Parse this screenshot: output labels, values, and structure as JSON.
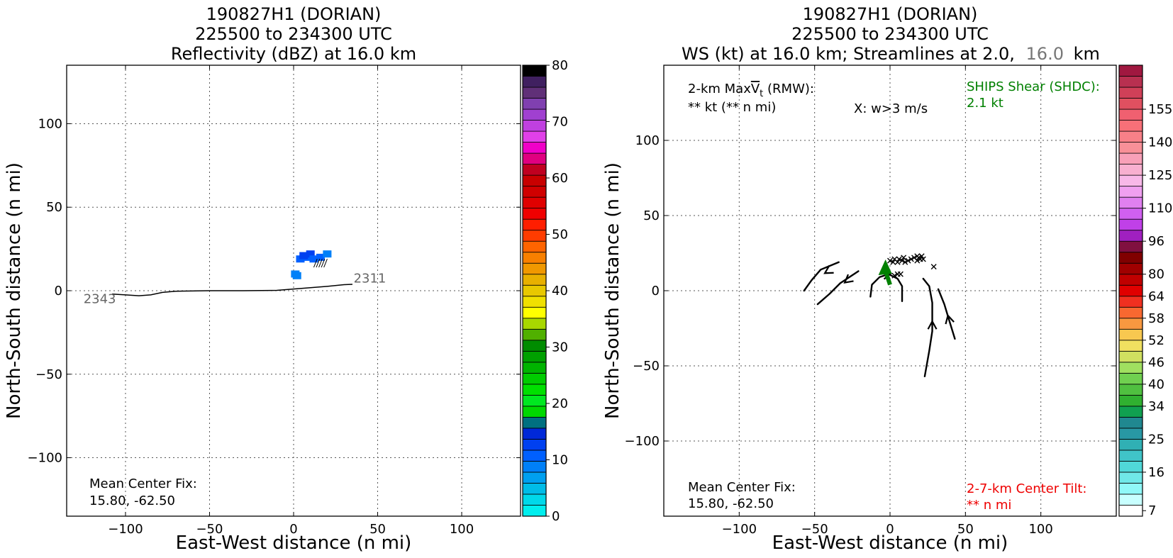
{
  "chart_data": [
    {
      "type": "heatmap",
      "title": [
        "190827H1 (DORIAN)",
        "225500 to 234300 UTC",
        "Reflectivity (dBZ) at 16.0 km"
      ],
      "xlabel": "East-West distance (n mi)",
      "ylabel": "North-South distance (n mi)",
      "xlim": [
        -135,
        135
      ],
      "ylim": [
        -135,
        135
      ],
      "xticks": [
        -100,
        -50,
        0,
        50,
        100
      ],
      "xtick_labels": [
        "−100",
        "−50",
        "0",
        "50",
        "100"
      ],
      "yticks": [
        -100,
        -50,
        0,
        50,
        100
      ],
      "ytick_labels": [
        "−100",
        "−50",
        "0",
        "50",
        "100"
      ],
      "grid": true,
      "colorbar": {
        "min": 0,
        "max": 80,
        "ticks": [
          0,
          10,
          20,
          30,
          40,
          50,
          60,
          70,
          80
        ],
        "colors": [
          "#00eeee",
          "#00d8ea",
          "#00bce8",
          "#00a0f0",
          "#0080f8",
          "#0060ff",
          "#0040f0",
          "#0028d8",
          "#007080",
          "#00d800",
          "#00e820",
          "#00e000",
          "#00cc00",
          "#00b400",
          "#00a000",
          "#008c00",
          "#50b000",
          "#a8d800",
          "#ffff00",
          "#f0e000",
          "#e8c800",
          "#e8b000",
          "#f09800",
          "#f88000",
          "#ff6400",
          "#ff3c00",
          "#ff1e00",
          "#f00000",
          "#e00000",
          "#d00000",
          "#c80000",
          "#c00020",
          "#e00080",
          "#f000c8",
          "#e040e8",
          "#c040e0",
          "#a040d0",
          "#8040b0",
          "#603078",
          "#402060",
          "#000000"
        ]
      },
      "annotations": {
        "center_fix_label": "Mean Center Fix:",
        "center_fix_value": "15.80, -62.50",
        "track_start_label": "2311",
        "track_end_label": "2343"
      },
      "flight_track": [
        [
          -108,
          -2
        ],
        [
          -100,
          -2.5
        ],
        [
          -92,
          -3
        ],
        [
          -85,
          -2.5
        ],
        [
          -78,
          -1
        ],
        [
          -70,
          -0.3
        ],
        [
          -50,
          0
        ],
        [
          -30,
          0
        ],
        [
          -10,
          0.2
        ],
        [
          0,
          1
        ],
        [
          10,
          1.8
        ],
        [
          20,
          2.6
        ],
        [
          30,
          3.6
        ],
        [
          35,
          3.8
        ]
      ],
      "reflectivity_cells": [
        {
          "x": 8,
          "y": 20,
          "dbz": 11
        },
        {
          "x": 10,
          "y": 22,
          "dbz": 12
        },
        {
          "x": 4,
          "y": 19,
          "dbz": 11
        },
        {
          "x": 6,
          "y": 21,
          "dbz": 12
        },
        {
          "x": 12,
          "y": 19,
          "dbz": 11
        },
        {
          "x": 16,
          "y": 20,
          "dbz": 10
        },
        {
          "x": 20,
          "y": 22,
          "dbz": 8
        },
        {
          "x": 1,
          "y": 10,
          "dbz": 9
        },
        {
          "x": 2,
          "y": 9,
          "dbz": 8
        }
      ]
    },
    {
      "type": "heatmap",
      "title": [
        "190827H1 (DORIAN)",
        "225500 to 234300 UTC",
        "WS (kt) at 16.0 km; Streamlines at 2.0,",
        "16.0",
        "km"
      ],
      "xlabel": "East-West distance (n mi)",
      "ylabel": "North-South distance (n mi)",
      "xlim": [
        -150,
        150
      ],
      "ylim": [
        -150,
        150
      ],
      "xticks": [
        -100,
        -50,
        0,
        50,
        100
      ],
      "xtick_labels": [
        "−100",
        "−50",
        "0",
        "50",
        "100"
      ],
      "yticks": [
        -100,
        -50,
        0,
        50,
        100
      ],
      "ytick_labels": [
        "−100",
        "−50",
        "0",
        "50",
        "100"
      ],
      "grid": true,
      "colorbar": {
        "ticks": [
          7,
          16,
          25,
          34,
          40,
          46,
          52,
          58,
          64,
          80,
          96,
          110,
          125,
          140,
          155
        ],
        "tick_labels": [
          "7",
          "16",
          "25",
          "34",
          "40",
          "46",
          "52",
          "58",
          "64",
          "80",
          "96",
          "110",
          "125",
          "140",
          "155"
        ],
        "colors": [
          "#ffffff",
          "#c8ffff",
          "#90f8f8",
          "#70e8e8",
          "#50d8d8",
          "#40c4c8",
          "#30b0b4",
          "#2898a4",
          "#208890",
          "#10a050",
          "#30b030",
          "#50c040",
          "#70d050",
          "#a0e060",
          "#d0e060",
          "#f0e060",
          "#f8c850",
          "#f89840",
          "#f86830",
          "#f03020",
          "#e00000",
          "#c00000",
          "#a00000",
          "#800000",
          "#801040",
          "#a020c0",
          "#c040e8",
          "#d060f0",
          "#e080f0",
          "#f0a0f0",
          "#f8b8e8",
          "#f8b0d0",
          "#f8a0b8",
          "#f89098",
          "#f88088",
          "#f87078",
          "#f06070",
          "#e05060",
          "#d04058",
          "#b83050",
          "#a01840"
        ]
      },
      "annotations": {
        "maxvt_label_prefix": "2-km Max",
        "maxvt_label_suffix": " (RMW):",
        "maxvt_value": "** kt (** n mi)",
        "w_legend": "X: w>3 m/s",
        "shear_label": "SHIPS Shear (SHDC):",
        "shear_value": "2.1 kt",
        "center_fix_label": "Mean Center Fix:",
        "center_fix_value": "15.80, -62.50",
        "tilt_label": "2-7-km Center Tilt:",
        "tilt_value": "** n mi"
      },
      "shear_vector": {
        "from": [
          0,
          4
        ],
        "to": [
          -3,
          17
        ],
        "color": "#008000"
      },
      "w_markers": [
        [
          0,
          20
        ],
        [
          2,
          19
        ],
        [
          3,
          21
        ],
        [
          5,
          19
        ],
        [
          6,
          21
        ],
        [
          8,
          20
        ],
        [
          9,
          22
        ],
        [
          10,
          19
        ],
        [
          12,
          20
        ],
        [
          14,
          21
        ],
        [
          16,
          22
        ],
        [
          18,
          20
        ],
        [
          18,
          23
        ],
        [
          19,
          22
        ],
        [
          20,
          21
        ],
        [
          21,
          23
        ],
        [
          22,
          21
        ],
        [
          29,
          16
        ],
        [
          3,
          10
        ],
        [
          5,
          11
        ],
        [
          7,
          11
        ]
      ],
      "streamlines": [
        [
          [
            -57,
            0
          ],
          [
            -52,
            7
          ],
          [
            -46,
            14
          ],
          [
            -34,
            19
          ]
        ],
        [
          [
            -48,
            -9
          ],
          [
            -40,
            -2
          ],
          [
            -33,
            5
          ],
          [
            -21,
            13
          ]
        ],
        [
          [
            -13,
            -4
          ],
          [
            -12,
            4
          ],
          [
            -7,
            9
          ],
          [
            -1,
            11
          ],
          [
            5,
            8
          ],
          [
            8,
            3
          ],
          [
            8,
            -7
          ]
        ],
        [
          [
            22,
            8
          ],
          [
            26,
            3
          ],
          [
            28,
            -8
          ],
          [
            28,
            -27
          ],
          [
            26,
            -40
          ],
          [
            23,
            -57
          ]
        ],
        [
          [
            32,
            1
          ],
          [
            36,
            -9
          ],
          [
            39,
            -19
          ],
          [
            43,
            -32
          ]
        ]
      ],
      "streamline_arrows": [
        {
          "at": [
            -41,
            13
          ],
          "dir": [
            -1,
            -0.6
          ]
        },
        {
          "at": [
            -28,
            7
          ],
          "dir": [
            -1,
            -0.8
          ]
        },
        {
          "at": [
            -2,
            11
          ],
          "dir": [
            1,
            0.2
          ]
        },
        {
          "at": [
            28,
            -23
          ],
          "dir": [
            0,
            1
          ]
        },
        {
          "at": [
            39,
            -19
          ],
          "dir": [
            -0.25,
            1
          ]
        }
      ]
    }
  ]
}
